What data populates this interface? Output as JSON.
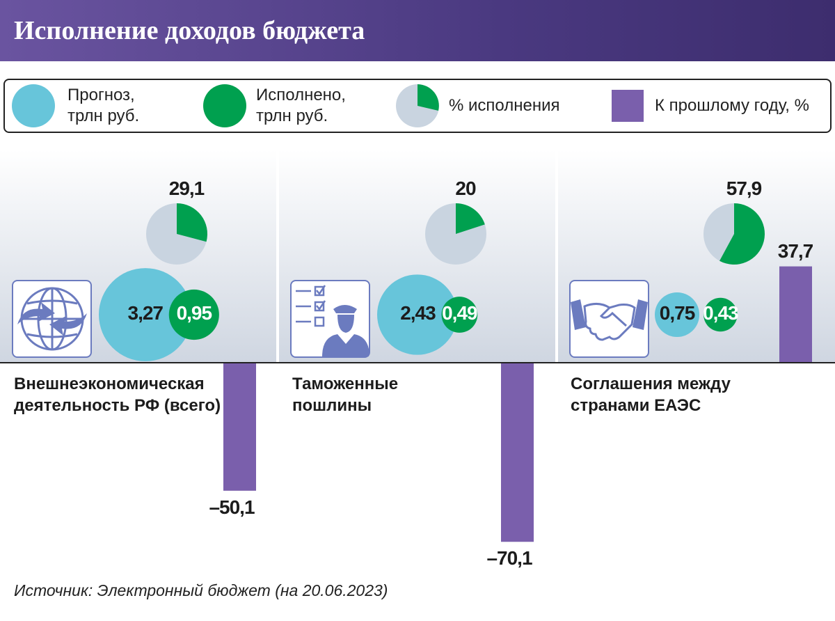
{
  "title": "Исполнение доходов бюджета",
  "legend": {
    "forecast": "Прогноз, трлн руб.",
    "executed": "Исполнено, трлн руб.",
    "percent": "% исполнения",
    "yoy": "К прошлому году, %"
  },
  "colors": {
    "forecast": "#67c5da",
    "executed": "#00a04f",
    "pie_bg": "#c9d4e0",
    "bar": "#7a5fac"
  },
  "chart_data": {
    "type": "bubble+pie+bar",
    "categories": [
      "Внешнеэкономическая деятельность РФ (всего)",
      "Таможенные пошлины",
      "Соглашения между странами ЕАЭС"
    ],
    "series": [
      {
        "name": "Прогноз, трлн руб.",
        "values": [
          3.27,
          2.43,
          0.75
        ]
      },
      {
        "name": "Исполнено, трлн руб.",
        "values": [
          0.95,
          0.49,
          0.43
        ]
      },
      {
        "name": "% исполнения",
        "values": [
          29.1,
          20,
          57.9
        ]
      },
      {
        "name": "К прошлому году, %",
        "values": [
          -50.1,
          -70.1,
          37.7
        ]
      }
    ],
    "labels": {
      "forecast": [
        "3,27",
        "2,43",
        "0,75"
      ],
      "executed": [
        "0,95",
        "0,49",
        "0,43"
      ],
      "percent": [
        "29,1",
        "20",
        "57,9"
      ],
      "yoy": [
        "–50,1",
        "–70,1",
        "37,7"
      ]
    },
    "icons": [
      "globe-exchange-icon",
      "customs-checklist-icon",
      "handshake-icon"
    ]
  },
  "source": "Источник: Электронный бюджет (на 20.06.2023)"
}
